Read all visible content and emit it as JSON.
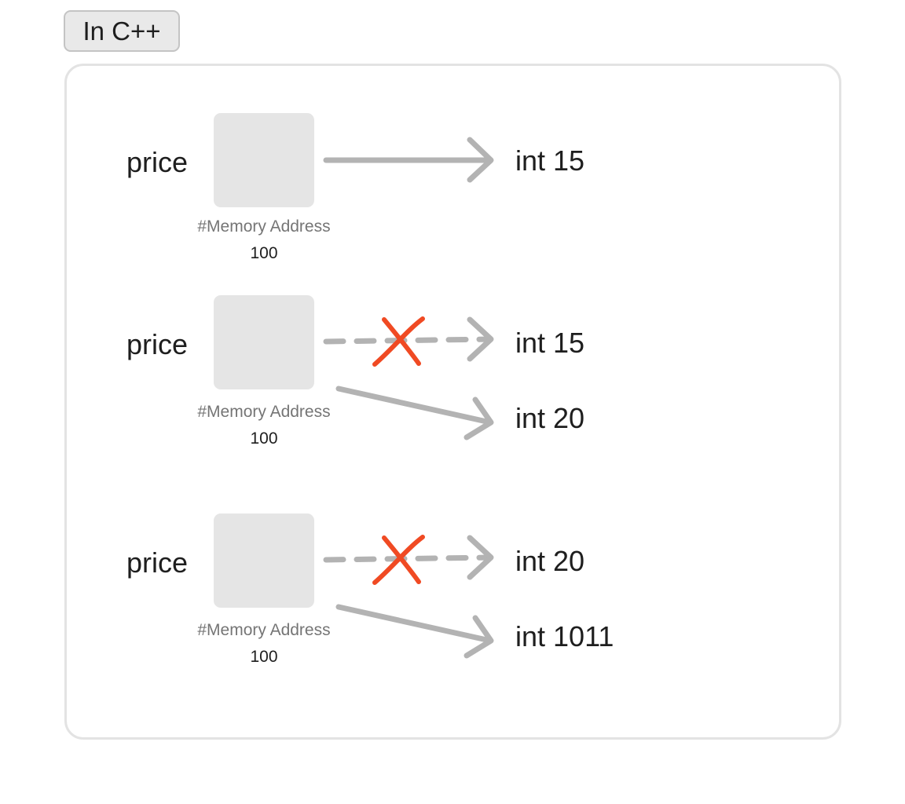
{
  "header": {
    "label": "In C++"
  },
  "colors": {
    "arrow": "#b3b3b3",
    "cross": "#f04a23",
    "cell": "#e5e5e5",
    "border": "#e3e3e3"
  },
  "rows": [
    {
      "variable": "price",
      "address_label": "#Memory Address",
      "address_value": "100",
      "values": [
        {
          "label": "int 15",
          "state": "current"
        }
      ]
    },
    {
      "variable": "price",
      "address_label": "#Memory Address",
      "address_value": "100",
      "values": [
        {
          "label": "int 15",
          "state": "discarded"
        },
        {
          "label": "int 20",
          "state": "current"
        }
      ]
    },
    {
      "variable": "price",
      "address_label": "#Memory Address",
      "address_value": "100",
      "values": [
        {
          "label": "int 20",
          "state": "discarded"
        },
        {
          "label": "int 1011",
          "state": "current"
        }
      ]
    }
  ]
}
